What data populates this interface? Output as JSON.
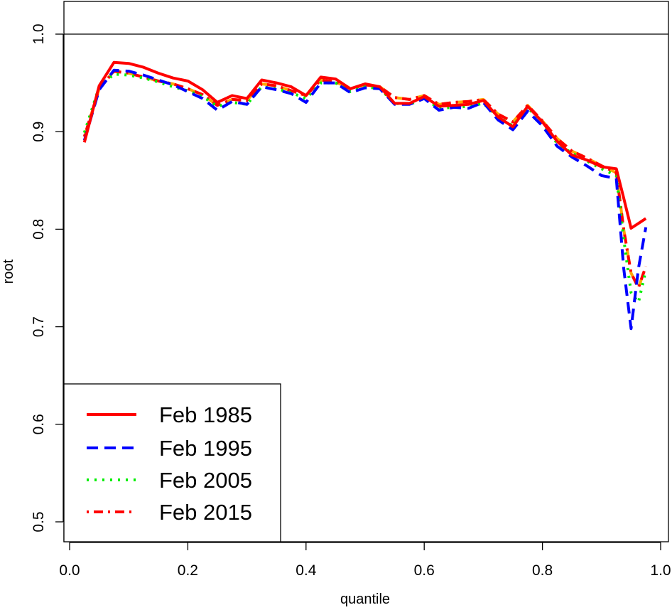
{
  "chart_data": {
    "type": "line",
    "title": "",
    "xlabel": "quantile",
    "ylabel": "root",
    "xlim": [
      0.0,
      1.0
    ],
    "ylim": [
      0.5,
      1.0
    ],
    "x_ticks": [
      0.0,
      0.2,
      0.4,
      0.6,
      0.8,
      1.0
    ],
    "x_tick_labels": [
      "0.0",
      "0.2",
      "0.4",
      "0.6",
      "0.8",
      "1.0"
    ],
    "y_ticks": [
      0.5,
      0.6,
      0.7,
      0.8,
      0.9,
      1.0
    ],
    "y_tick_labels": [
      "0.5",
      "0.6",
      "0.7",
      "0.8",
      "0.9",
      "1.0"
    ],
    "reference_line": {
      "y": 1.0,
      "color": "#000000"
    },
    "grid": false,
    "legend_position": "bottom-left",
    "x": [
      0.025,
      0.05,
      0.075,
      0.1,
      0.125,
      0.15,
      0.175,
      0.2,
      0.225,
      0.25,
      0.275,
      0.3,
      0.325,
      0.35,
      0.375,
      0.4,
      0.425,
      0.45,
      0.475,
      0.5,
      0.525,
      0.55,
      0.575,
      0.6,
      0.625,
      0.65,
      0.675,
      0.7,
      0.725,
      0.75,
      0.775,
      0.8,
      0.825,
      0.85,
      0.875,
      0.9,
      0.925,
      0.9375,
      0.95,
      0.9625,
      0.975
    ],
    "series": [
      {
        "name": "Feb 1985",
        "color": "#ff0000",
        "dash": "solid",
        "values": [
          0.889,
          0.947,
          0.971,
          0.97,
          0.966,
          0.96,
          0.955,
          0.952,
          0.943,
          0.93,
          0.937,
          0.934,
          0.953,
          0.95,
          0.946,
          0.937,
          0.956,
          0.954,
          0.944,
          0.949,
          0.946,
          0.929,
          0.929,
          0.936,
          0.926,
          0.927,
          0.928,
          0.932,
          0.915,
          0.905,
          0.926,
          0.91,
          0.89,
          0.876,
          0.871,
          0.864,
          0.862,
          0.832,
          0.801,
          0.806,
          0.811
        ]
      },
      {
        "name": "Feb 1995",
        "color": "#0000ff",
        "dash": "dashed",
        "values": [
          0.891,
          0.943,
          0.963,
          0.962,
          0.958,
          0.953,
          0.948,
          0.941,
          0.934,
          0.922,
          0.931,
          0.928,
          0.946,
          0.943,
          0.939,
          0.93,
          0.95,
          0.95,
          0.94,
          0.945,
          0.944,
          0.928,
          0.928,
          0.934,
          0.922,
          0.925,
          0.924,
          0.93,
          0.912,
          0.902,
          0.921,
          0.906,
          0.885,
          0.874,
          0.865,
          0.855,
          0.852,
          0.76,
          0.698,
          0.76,
          0.802
        ]
      },
      {
        "name": "Feb 2005",
        "color": "#00ee00",
        "dash": "dotted",
        "values": [
          0.899,
          0.946,
          0.959,
          0.958,
          0.955,
          0.951,
          0.946,
          0.942,
          0.936,
          0.926,
          0.93,
          0.928,
          0.946,
          0.944,
          0.94,
          0.934,
          0.95,
          0.95,
          0.941,
          0.946,
          0.944,
          0.929,
          0.928,
          0.934,
          0.924,
          0.925,
          0.926,
          0.929,
          0.915,
          0.906,
          0.925,
          0.908,
          0.888,
          0.878,
          0.87,
          0.862,
          0.855,
          0.79,
          0.735,
          0.725,
          0.758
        ]
      },
      {
        "name": "Feb 2015",
        "color": "#ff0000",
        "dash": "dotdash",
        "values": [
          0.895,
          0.944,
          0.962,
          0.96,
          0.956,
          0.952,
          0.949,
          0.944,
          0.938,
          0.927,
          0.933,
          0.932,
          0.949,
          0.947,
          0.942,
          0.937,
          0.953,
          0.951,
          0.944,
          0.948,
          0.946,
          0.935,
          0.933,
          0.937,
          0.928,
          0.93,
          0.931,
          0.933,
          0.918,
          0.91,
          0.927,
          0.911,
          0.893,
          0.88,
          0.873,
          0.865,
          0.858,
          0.8,
          0.755,
          0.74,
          0.762
        ]
      },
      {
        "name": "",
        "color": "#ffa500",
        "dash": "longdash",
        "values": [
          0.895,
          0.944,
          0.962,
          0.96,
          0.956,
          0.952,
          0.949,
          0.944,
          0.938,
          0.927,
          0.933,
          0.932,
          0.949,
          0.947,
          0.942,
          0.937,
          0.953,
          0.951,
          0.944,
          0.948,
          0.946,
          0.935,
          0.933,
          0.937,
          0.928,
          0.93,
          0.931,
          0.933,
          0.918,
          0.91,
          0.927,
          0.911,
          0.893,
          0.88,
          0.873,
          0.865,
          0.858,
          0.8,
          0.755,
          0.74,
          0.762
        ]
      }
    ],
    "legend": [
      {
        "label": "Feb 1985",
        "color": "#ff0000",
        "dash": "solid"
      },
      {
        "label": "Feb 1995",
        "color": "#0000ff",
        "dash": "dashed"
      },
      {
        "label": "Feb 2005",
        "color": "#00ee00",
        "dash": "dotted"
      },
      {
        "label": "Feb 2015",
        "color": "#ff0000",
        "dash": "dotdash"
      }
    ]
  }
}
